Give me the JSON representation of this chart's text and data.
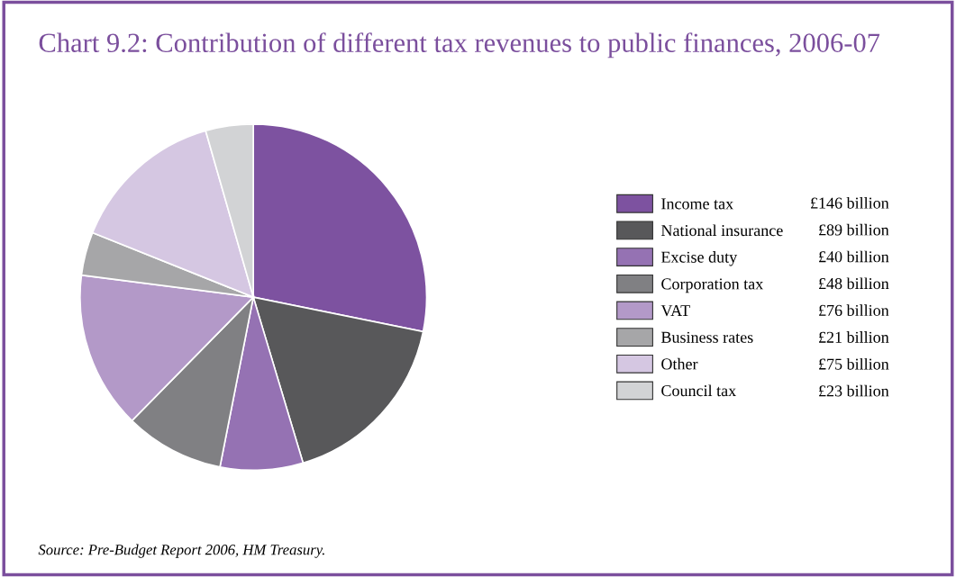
{
  "chart_data": {
    "type": "pie",
    "title": "Chart 9.2: Contribution of different tax revenues to public finances, 2006-07",
    "categories": [
      "Income tax",
      "National insurance",
      "Excise duty",
      "Corporation tax",
      "VAT",
      "Business rates",
      "Other",
      "Council tax"
    ],
    "values": [
      146,
      89,
      40,
      48,
      76,
      21,
      75,
      23
    ],
    "value_labels": [
      "£146 billion",
      "£89 billion",
      "£40 billion",
      "£48 billion",
      "£76 billion",
      "£21 billion",
      "£75 billion",
      "£23 billion"
    ],
    "colors": [
      "#7d52a0",
      "#58585a",
      "#9572b3",
      "#808083",
      "#b399c8",
      "#a6a6a8",
      "#d5c7e2",
      "#d2d3d5"
    ],
    "legend": "right",
    "annotations": [
      "Source: Pre-Budget Report 2006, HM Treasury."
    ]
  }
}
